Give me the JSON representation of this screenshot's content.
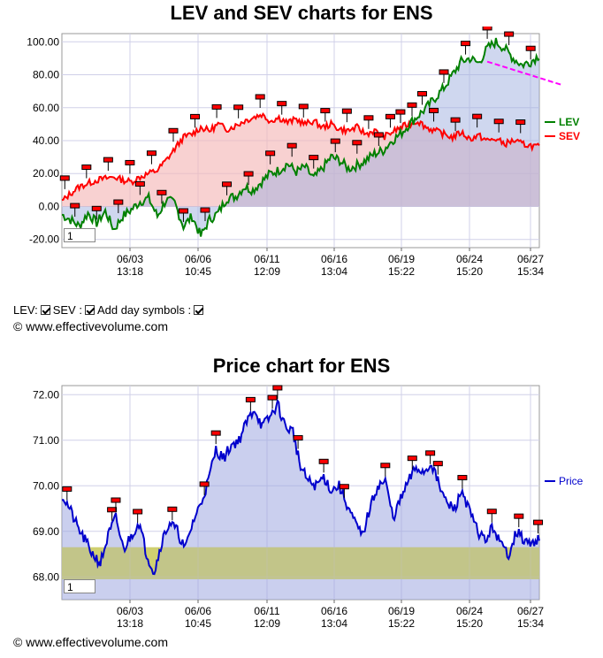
{
  "chart_data": [
    {
      "type": "line",
      "title": "LEV and SEV charts for ENS",
      "x_tick_labels": [
        {
          "date": "06/03",
          "time": "13:18"
        },
        {
          "date": "06/06",
          "time": "10:45"
        },
        {
          "date": "06/11",
          "time": "12:09"
        },
        {
          "date": "06/16",
          "time": "13:04"
        },
        {
          "date": "06/19",
          "time": "15:22"
        },
        {
          "date": "06/24",
          "time": "15:20"
        },
        {
          "date": "06/27",
          "time": "15:34"
        }
      ],
      "y_tick_labels": [
        "100.00",
        "80.00",
        "60.00",
        "40.00",
        "20.00",
        "0.00",
        "-20.00"
      ],
      "ylim": [
        -25,
        105
      ],
      "grid": true,
      "legend_position": "right",
      "series": [
        {
          "name": "LEV",
          "color": "#008000",
          "values": [
            -5,
            -8,
            -12,
            -4,
            -10,
            -3,
            -14,
            -6,
            -2,
            3,
            5,
            -6,
            4,
            2,
            -12,
            -6,
            -18,
            -8,
            -4,
            5,
            6,
            12,
            10,
            15,
            20,
            22,
            26,
            21,
            24,
            17,
            23,
            30,
            28,
            23,
            25,
            28,
            32,
            34,
            40,
            44,
            50,
            55,
            60,
            66,
            72,
            80,
            88,
            90,
            87,
            96,
            100,
            96,
            90,
            86,
            88,
            92
          ]
        },
        {
          "name": "SEV",
          "color": "#ff0000",
          "values": [
            3,
            8,
            12,
            14,
            16,
            17,
            18,
            16,
            15,
            18,
            20,
            22,
            28,
            35,
            42,
            44,
            48,
            46,
            50,
            47,
            49,
            52,
            54,
            56,
            52,
            54,
            51,
            53,
            50,
            52,
            48,
            50,
            47,
            46,
            48,
            44,
            46,
            42,
            45,
            48,
            50,
            52,
            48,
            46,
            44,
            42,
            45,
            41,
            43,
            40,
            41,
            38,
            40,
            38,
            37,
            36
          ]
        }
      ],
      "trend_line": {
        "color": "#ff00ff",
        "start_index": 49,
        "start_value": 88,
        "end_index": 57.5,
        "end_value": 74
      },
      "index_box_value": "1"
    },
    {
      "type": "area",
      "title": "Price chart for ENS",
      "x_tick_labels": [
        {
          "date": "06/03",
          "time": "13:18"
        },
        {
          "date": "06/06",
          "time": "10:45"
        },
        {
          "date": "06/11",
          "time": "12:09"
        },
        {
          "date": "06/16",
          "time": "13:04"
        },
        {
          "date": "06/19",
          "time": "15:22"
        },
        {
          "date": "06/24",
          "time": "15:20"
        },
        {
          "date": "06/27",
          "time": "15:34"
        }
      ],
      "y_tick_labels": [
        "72.00",
        "71.00",
        "70.00",
        "69.00",
        "68.00"
      ],
      "ylim": [
        67.5,
        72.2
      ],
      "grid": true,
      "legend_position": "right",
      "band": {
        "low": 67.95,
        "high": 68.65,
        "color": "#cccc66"
      },
      "series": [
        {
          "name": "Price",
          "color": "#0000cc",
          "values": [
            69.8,
            69.5,
            69.1,
            68.8,
            68.5,
            68.3,
            68.9,
            69.3,
            68.6,
            68.9,
            69.2,
            68.5,
            68.1,
            68.8,
            69.2,
            69.0,
            68.6,
            69.2,
            69.6,
            70.1,
            70.8,
            70.6,
            70.9,
            71.0,
            71.4,
            71.7,
            71.3,
            71.5,
            71.8,
            71.3,
            71.2,
            70.4,
            70.1,
            70.0,
            70.2,
            69.9,
            70.0,
            69.6,
            69.2,
            68.9,
            69.5,
            70.0,
            70.1,
            69.3,
            69.7,
            70.1,
            70.4,
            70.3,
            70.5,
            70.0,
            69.6,
            69.5,
            69.9,
            69.4,
            69.0,
            68.8,
            69.1,
            68.7,
            68.5,
            69.0,
            68.8,
            68.7,
            68.9
          ]
        }
      ],
      "index_box_value": "1"
    }
  ],
  "controls": {
    "lev_label": "LEV:",
    "sev_label": "SEV :",
    "day_symbols_label": "Add day symbols :"
  },
  "copyright": "© www.effectivevolume.com"
}
